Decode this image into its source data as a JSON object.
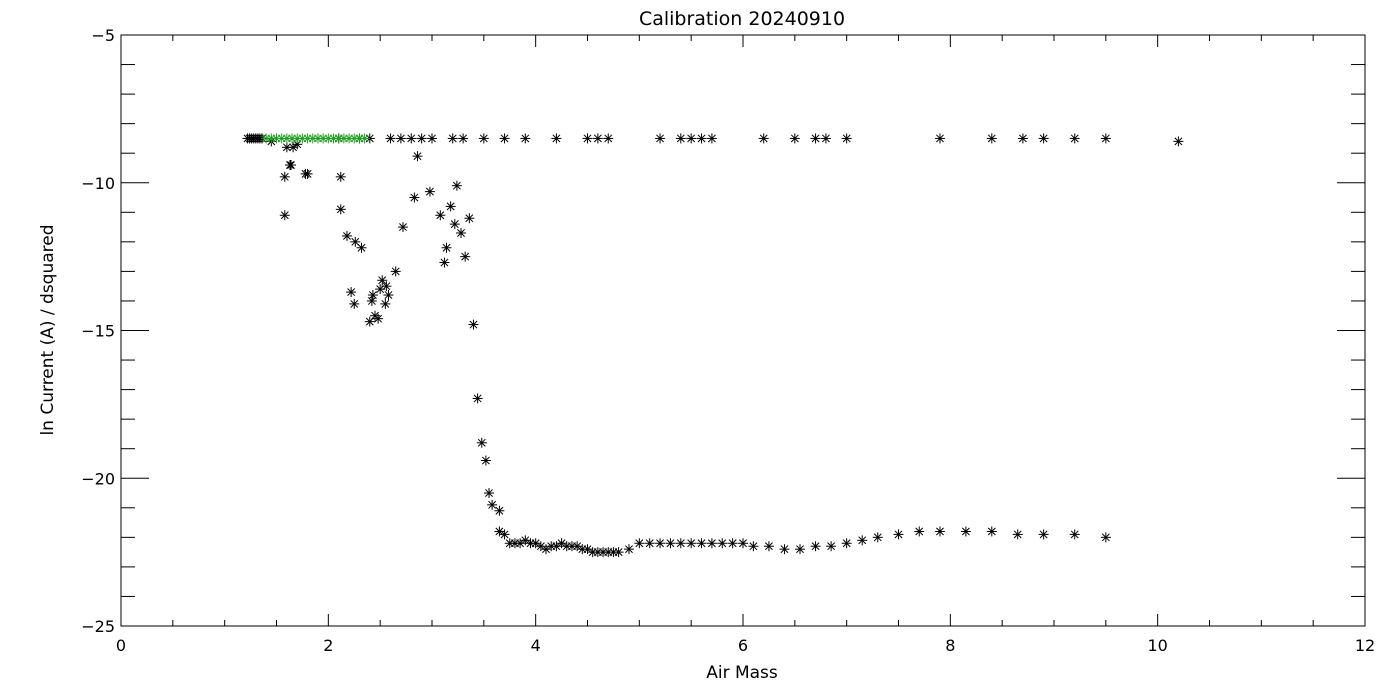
{
  "chart_data": {
    "type": "scatter",
    "title": "Calibration  20240910",
    "xlabel": "Air Mass",
    "ylabel": "ln Current (A) / dsquared",
    "xlim": [
      0,
      12
    ],
    "ylim": [
      -25,
      -5
    ],
    "x_ticks": [
      0,
      2,
      4,
      6,
      8,
      10,
      12
    ],
    "y_ticks": [
      -25,
      -20,
      -15,
      -10,
      -5
    ],
    "x_tick_labels": [
      "0",
      "2",
      "4",
      "6",
      "8",
      "10",
      "12"
    ],
    "y_tick_labels": [
      "−25",
      "−20",
      "−15",
      "−10",
      "−5"
    ],
    "grid": false,
    "marker": "asterisk",
    "series": [
      {
        "color": "#000000",
        "x": [
          1.22,
          1.24,
          1.26,
          1.28,
          1.3,
          1.32,
          1.34,
          1.36,
          1.45,
          1.58,
          1.6,
          1.63,
          1.66,
          1.7,
          1.78,
          1.8,
          2.1,
          2.3,
          2.4,
          2.6,
          2.7,
          2.8,
          2.9,
          3.0,
          3.2,
          3.3,
          3.5,
          3.7,
          3.9,
          4.2,
          4.5,
          4.6,
          4.7,
          5.2,
          5.4,
          5.5,
          5.6,
          5.7,
          6.2,
          6.5,
          6.7,
          6.8,
          7.0,
          7.9,
          8.4,
          8.7,
          8.9,
          9.2,
          9.5,
          10.2
        ],
        "y": [
          -8.5,
          -8.5,
          -8.5,
          -8.5,
          -8.5,
          -8.5,
          -8.5,
          -8.5,
          -8.6,
          -9.8,
          -8.8,
          -9.4,
          -8.8,
          -8.7,
          -9.7,
          -9.7,
          -8.5,
          -8.5,
          -8.5,
          -8.5,
          -8.5,
          -8.5,
          -8.5,
          -8.5,
          -8.5,
          -8.5,
          -8.5,
          -8.5,
          -8.5,
          -8.5,
          -8.5,
          -8.5,
          -8.5,
          -8.5,
          -8.5,
          -8.5,
          -8.5,
          -8.5,
          -8.5,
          -8.5,
          -8.5,
          -8.5,
          -8.5,
          -8.5,
          -8.5,
          -8.5,
          -8.5,
          -8.5,
          -8.5,
          -8.6
        ]
      },
      {
        "color": "#000000",
        "x": [
          1.58,
          1.64,
          2.12,
          2.12,
          2.18,
          2.22,
          2.25,
          2.26,
          2.32,
          2.4,
          2.42,
          2.43,
          2.45,
          2.48,
          2.5,
          2.52,
          2.55,
          2.56,
          2.58,
          2.65,
          2.72,
          2.83,
          2.86,
          2.98,
          3.08,
          3.12,
          3.14,
          3.18,
          3.22,
          3.24,
          3.28,
          3.32,
          3.36,
          3.4,
          3.44,
          3.48,
          3.52,
          3.55,
          3.58,
          3.65
        ],
        "y": [
          -11.1,
          -9.4,
          -9.8,
          -10.9,
          -11.8,
          -13.7,
          -14.1,
          -12.0,
          -12.2,
          -14.7,
          -14.0,
          -13.8,
          -14.5,
          -14.6,
          -13.6,
          -13.3,
          -14.1,
          -13.5,
          -13.8,
          -13.0,
          -11.5,
          -10.5,
          -9.1,
          -10.3,
          -11.1,
          -12.7,
          -12.2,
          -10.8,
          -11.4,
          -10.1,
          -11.7,
          -12.5,
          -11.2,
          -14.8,
          -17.3,
          -18.8,
          -19.4,
          -20.5,
          -20.9,
          -21.1
        ],
        "y_note": null
      },
      {
        "color": "#000000",
        "x": [
          3.65,
          3.7,
          3.75,
          3.8,
          3.85,
          3.9,
          3.95,
          4.0,
          4.05,
          4.1,
          4.15,
          4.2,
          4.25,
          4.3,
          4.35,
          4.4,
          4.45,
          4.5,
          4.55,
          4.6,
          4.65,
          4.7,
          4.75,
          4.8,
          4.9,
          5.0,
          5.1,
          5.2,
          5.3,
          5.4,
          5.5,
          5.6,
          5.7,
          5.8,
          5.9,
          6.0,
          6.1,
          6.25,
          6.4,
          6.55,
          6.7,
          6.85,
          7.0,
          7.15,
          7.3,
          7.5,
          7.7,
          7.9,
          8.15,
          8.4,
          8.65,
          8.9,
          9.2,
          9.5
        ],
        "y": [
          -21.8,
          -21.9,
          -22.2,
          -22.2,
          -22.2,
          -22.1,
          -22.2,
          -22.2,
          -22.3,
          -22.4,
          -22.3,
          -22.3,
          -22.2,
          -22.3,
          -22.3,
          -22.3,
          -22.4,
          -22.4,
          -22.5,
          -22.5,
          -22.5,
          -22.5,
          -22.5,
          -22.5,
          -22.4,
          -22.2,
          -22.2,
          -22.2,
          -22.2,
          -22.2,
          -22.2,
          -22.2,
          -22.2,
          -22.2,
          -22.2,
          -22.2,
          -22.3,
          -22.3,
          -22.4,
          -22.4,
          -22.3,
          -22.3,
          -22.2,
          -22.1,
          -22.0,
          -21.9,
          -21.8,
          -21.8,
          -21.8,
          -21.8,
          -21.9,
          -21.9,
          -21.9,
          -22.0
        ]
      },
      {
        "color": "#20a020",
        "x": [
          1.4,
          1.45,
          1.5,
          1.55,
          1.6,
          1.65,
          1.7,
          1.75,
          1.8,
          1.85,
          1.9,
          1.95,
          2.0,
          2.05,
          2.1,
          2.15,
          2.2,
          2.25,
          2.3,
          2.35
        ],
        "y": [
          -8.5,
          -8.5,
          -8.5,
          -8.5,
          -8.5,
          -8.5,
          -8.5,
          -8.5,
          -8.5,
          -8.5,
          -8.5,
          -8.5,
          -8.5,
          -8.5,
          -8.5,
          -8.5,
          -8.5,
          -8.5,
          -8.5,
          -8.5
        ]
      }
    ]
  }
}
